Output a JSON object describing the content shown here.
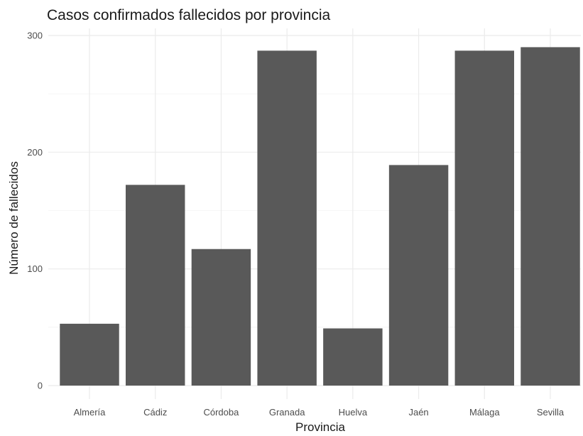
{
  "chart_data": {
    "type": "bar",
    "title": "Casos confirmados fallecidos por provincia",
    "xlabel": "Provincia",
    "ylabel": "Número de fallecidos",
    "categories": [
      "Almería",
      "Cádiz",
      "Córdoba",
      "Granada",
      "Huelva",
      "Jaén",
      "Málaga",
      "Sevilla"
    ],
    "values": [
      53,
      172,
      117,
      287,
      49,
      189,
      287,
      290
    ],
    "ylim": [
      0,
      300
    ],
    "yticks": [
      "0",
      "100",
      "200",
      "300"
    ],
    "grid": true,
    "legend": "none",
    "bar_color": "#595959"
  }
}
